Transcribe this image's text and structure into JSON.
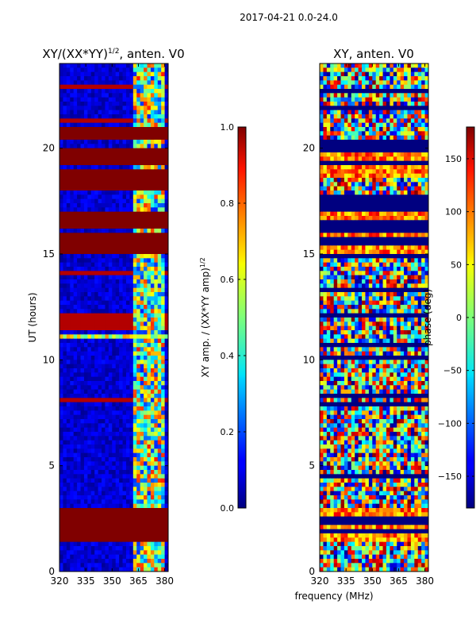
{
  "figure_title": "2017-04-21 0.0-24.0",
  "xlabel_shared": "frequency (MHz)",
  "chart_data": [
    {
      "type": "heatmap",
      "title_main": "XY/(XX*YY)",
      "title_sup": "1/2",
      "title_tail": ", anten. V0",
      "xlabel": "frequency (MHz)",
      "ylabel": "UT (hours)",
      "xlim": [
        320,
        382
      ],
      "ylim": [
        0,
        24
      ],
      "xticks": [
        "320",
        "335",
        "350",
        "365",
        "380"
      ],
      "xtick_values": [
        320,
        335,
        350,
        365,
        380
      ],
      "yticks": [
        "0",
        "5",
        "10",
        "15",
        "20"
      ],
      "ytick_values": [
        0,
        5,
        10,
        15,
        20
      ],
      "colormap": "jet",
      "colorbar": {
        "label_main": "XY amp. / (XX*YY amp)",
        "label_sup": "1/2",
        "range": [
          0.0,
          1.0
        ],
        "ticks": [
          "0.0",
          "0.2",
          "0.4",
          "0.6",
          "0.8",
          "1.0"
        ],
        "tick_values": [
          0.0,
          0.2,
          0.4,
          0.6,
          0.8,
          1.0
        ]
      },
      "saturated_ut_bands": [
        [
          1.5,
          2.9
        ],
        [
          15.1,
          15.9
        ],
        [
          16.3,
          17.0
        ],
        [
          18.0,
          19.0
        ],
        [
          19.2,
          20.0
        ],
        [
          20.5,
          20.9
        ]
      ],
      "active_freq_range": [
        362,
        380
      ],
      "bright_ut_line": 11.1
    },
    {
      "type": "heatmap",
      "title": "XY, anten. V0",
      "xlabel": "frequency (MHz)",
      "ylabel": "",
      "xlim": [
        320,
        382
      ],
      "ylim": [
        0,
        24
      ],
      "xticks": [
        "320",
        "335",
        "350",
        "365",
        "380"
      ],
      "xtick_values": [
        320,
        335,
        350,
        365,
        380
      ],
      "yticks": [
        "0",
        "5",
        "10",
        "15",
        "20"
      ],
      "ytick_values": [
        0,
        5,
        10,
        15,
        20
      ],
      "colormap": "jet",
      "colorbar": {
        "label": "phase (deg)",
        "range": [
          -180,
          180
        ],
        "ticks": [
          "−150",
          "−100",
          "−50",
          "0",
          "50",
          "100",
          "150"
        ],
        "tick_values": [
          -150,
          -100,
          -50,
          0,
          50,
          100,
          150
        ]
      },
      "flagged_ut_bands": [
        [
          1.5,
          2.9
        ],
        [
          14.9,
          16.9
        ],
        [
          17.1,
          17.7
        ],
        [
          18.7,
          20.4
        ]
      ]
    }
  ]
}
